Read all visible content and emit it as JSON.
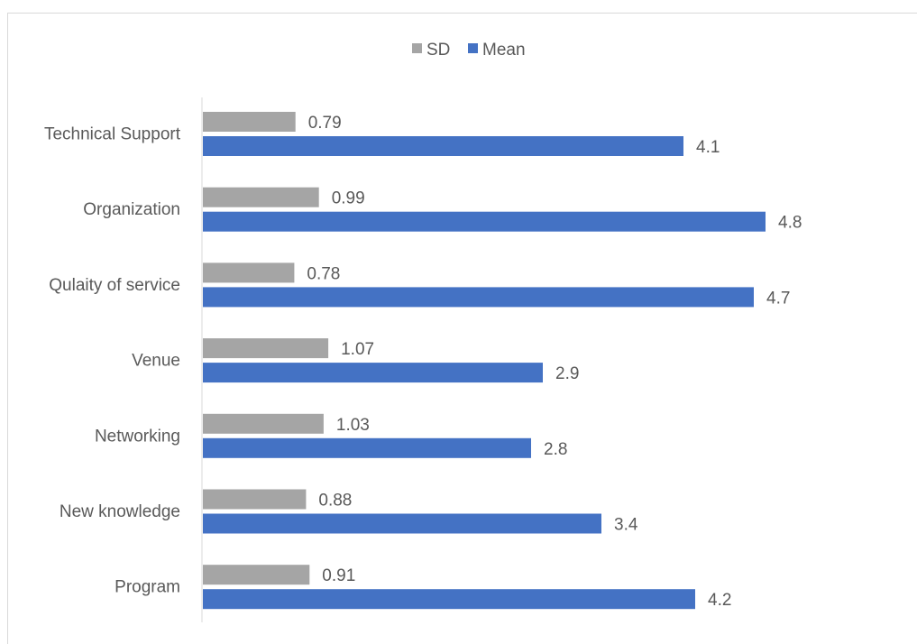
{
  "chart_data": {
    "type": "bar",
    "orientation": "horizontal",
    "categories": [
      "Technical Support",
      "Organization",
      "Qulaity of service",
      "Venue",
      "Networking",
      "New knowledge ",
      "Program"
    ],
    "series": [
      {
        "name": "SD",
        "values": [
          0.79,
          0.99,
          0.78,
          1.07,
          1.03,
          0.88,
          0.91
        ],
        "labels": [
          "0.79",
          "0.99",
          "0.78",
          "1.07",
          "1.03",
          "0.88",
          "0.91"
        ],
        "color": "#a5a5a5"
      },
      {
        "name": "Mean",
        "values": [
          4.1,
          4.8,
          4.7,
          2.9,
          2.8,
          3.4,
          4.2
        ],
        "labels": [
          "4.1",
          "4.8",
          "4.7",
          "2.9",
          "2.8",
          "3.4",
          "4.2"
        ],
        "color": "#4472c4"
      }
    ],
    "title": "",
    "xlabel": "",
    "ylabel": "",
    "xlim": [
      0,
      6
    ],
    "grid": false,
    "legend": "top-center",
    "label_color": "#595959",
    "axis_color": "#d9d9d9"
  }
}
